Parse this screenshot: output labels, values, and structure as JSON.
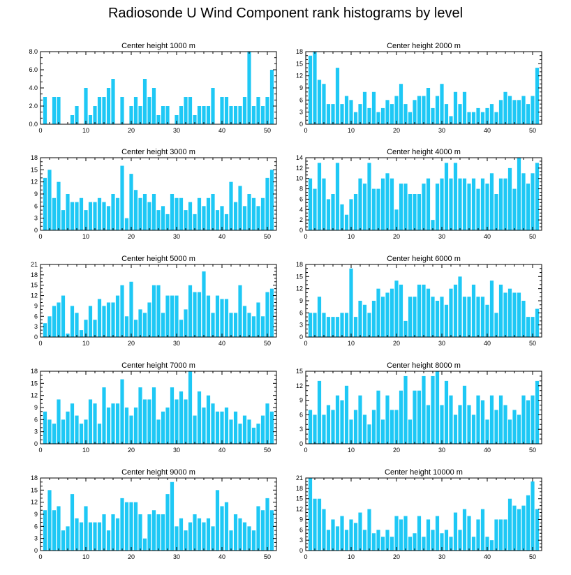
{
  "title": "Radiosonde U Wind Component rank histograms by level",
  "colors": {
    "bar": "#1ec8f5",
    "axis": "#000000"
  },
  "chart_data": [
    {
      "type": "bar",
      "title": "Center height 1000 m",
      "xlim": [
        0,
        52
      ],
      "ylim": [
        0,
        8
      ],
      "xticks": [
        0,
        10,
        20,
        30,
        40,
        50
      ],
      "yticks": [
        0,
        2,
        4,
        6,
        8
      ],
      "ytick_labels": [
        "0.0",
        "2.0",
        "4.0",
        "6.0",
        "8.0"
      ],
      "x": [
        1,
        2,
        3,
        4,
        5,
        6,
        7,
        8,
        9,
        10,
        11,
        12,
        13,
        14,
        15,
        16,
        17,
        18,
        19,
        20,
        21,
        22,
        23,
        24,
        25,
        26,
        27,
        28,
        29,
        30,
        31,
        32,
        33,
        34,
        35,
        36,
        37,
        38,
        39,
        40,
        41,
        42,
        43,
        44,
        45,
        46,
        47,
        48,
        49,
        50,
        51
      ],
      "values": [
        3,
        0,
        3,
        3,
        0,
        0,
        1,
        2,
        0,
        4,
        1,
        2,
        3,
        3,
        4,
        5,
        0,
        3,
        0,
        2,
        3,
        2,
        5,
        3,
        4,
        1,
        2,
        2,
        0,
        1,
        2,
        3,
        3,
        1,
        2,
        2,
        2,
        4,
        0,
        3,
        3,
        2,
        2,
        2,
        3,
        8,
        2,
        3,
        2,
        3,
        6
      ]
    },
    {
      "type": "bar",
      "title": "Center height 2000 m",
      "xlim": [
        0,
        52
      ],
      "ylim": [
        0,
        18
      ],
      "xticks": [
        0,
        10,
        20,
        30,
        40,
        50
      ],
      "yticks": [
        0,
        3,
        6,
        9,
        12,
        15,
        18
      ],
      "ytick_labels": [
        "0",
        "3",
        "6",
        "9",
        "12",
        "15",
        "18"
      ],
      "x": [
        1,
        2,
        3,
        4,
        5,
        6,
        7,
        8,
        9,
        10,
        11,
        12,
        13,
        14,
        15,
        16,
        17,
        18,
        19,
        20,
        21,
        22,
        23,
        24,
        25,
        26,
        27,
        28,
        29,
        30,
        31,
        32,
        33,
        34,
        35,
        36,
        37,
        38,
        39,
        40,
        41,
        42,
        43,
        44,
        45,
        46,
        47,
        48,
        49,
        50,
        51
      ],
      "values": [
        17,
        18,
        11,
        10,
        5,
        5,
        14,
        5,
        7,
        6,
        3,
        5,
        8,
        4,
        8,
        3,
        4,
        6,
        5,
        7,
        10,
        5,
        3,
        6,
        7,
        7,
        9,
        4,
        7,
        10,
        5,
        2,
        8,
        5,
        8,
        3,
        3,
        4,
        3,
        4,
        5,
        3,
        6,
        8,
        7,
        6,
        6,
        7,
        5,
        7,
        14
      ]
    },
    {
      "type": "bar",
      "title": "Center height 3000 m",
      "xlim": [
        0,
        52
      ],
      "ylim": [
        0,
        18
      ],
      "xticks": [
        0,
        10,
        20,
        30,
        40,
        50
      ],
      "yticks": [
        0,
        3,
        6,
        9,
        12,
        15,
        18
      ],
      "ytick_labels": [
        "0",
        "3",
        "6",
        "9",
        "12",
        "15",
        "18"
      ],
      "x": [
        1,
        2,
        3,
        4,
        5,
        6,
        7,
        8,
        9,
        10,
        11,
        12,
        13,
        14,
        15,
        16,
        17,
        18,
        19,
        20,
        21,
        22,
        23,
        24,
        25,
        26,
        27,
        28,
        29,
        30,
        31,
        32,
        33,
        34,
        35,
        36,
        37,
        38,
        39,
        40,
        41,
        42,
        43,
        44,
        45,
        46,
        47,
        48,
        49,
        50,
        51
      ],
      "values": [
        13,
        15,
        8,
        12,
        5,
        9,
        7,
        7,
        8,
        5,
        7,
        7,
        8,
        7,
        6,
        9,
        8,
        16,
        3,
        14,
        10,
        8,
        9,
        7,
        9,
        5,
        6,
        4,
        9,
        8,
        8,
        5,
        7,
        4,
        8,
        6,
        8,
        9,
        5,
        6,
        4,
        12,
        7,
        11,
        6,
        9,
        8,
        6,
        8,
        13,
        15
      ]
    },
    {
      "type": "bar",
      "title": "Center height 4000 m",
      "xlim": [
        0,
        52
      ],
      "ylim": [
        0,
        14
      ],
      "xticks": [
        0,
        10,
        20,
        30,
        40,
        50
      ],
      "yticks": [
        0,
        2,
        4,
        6,
        8,
        10,
        12,
        14
      ],
      "ytick_labels": [
        "0",
        "2",
        "4",
        "6",
        "8",
        "10",
        "12",
        "14"
      ],
      "x": [
        1,
        2,
        3,
        4,
        5,
        6,
        7,
        8,
        9,
        10,
        11,
        12,
        13,
        14,
        15,
        16,
        17,
        18,
        19,
        20,
        21,
        22,
        23,
        24,
        25,
        26,
        27,
        28,
        29,
        30,
        31,
        32,
        33,
        34,
        35,
        36,
        37,
        38,
        39,
        40,
        41,
        42,
        43,
        44,
        45,
        46,
        47,
        48,
        49,
        50,
        51
      ],
      "values": [
        10,
        8,
        13,
        10,
        6,
        7,
        13,
        5,
        3,
        6,
        7,
        10,
        9,
        13,
        8,
        8,
        10,
        11,
        10,
        4,
        9,
        9,
        7,
        7,
        7,
        9,
        10,
        2,
        9,
        10,
        13,
        10,
        13,
        10,
        10,
        9,
        10,
        8,
        10,
        9,
        11,
        7,
        10,
        10,
        12,
        8,
        14,
        11,
        9,
        11,
        13
      ]
    },
    {
      "type": "bar",
      "title": "Center height 5000 m",
      "xlim": [
        0,
        52
      ],
      "ylim": [
        0,
        21
      ],
      "xticks": [
        0,
        10,
        20,
        30,
        40,
        50
      ],
      "yticks": [
        0,
        3,
        6,
        9,
        12,
        15,
        18,
        21
      ],
      "ytick_labels": [
        "0",
        "3",
        "6",
        "9",
        "12",
        "15",
        "18",
        "21"
      ],
      "x": [
        1,
        2,
        3,
        4,
        5,
        6,
        7,
        8,
        9,
        10,
        11,
        12,
        13,
        14,
        15,
        16,
        17,
        18,
        19,
        20,
        21,
        22,
        23,
        24,
        25,
        26,
        27,
        28,
        29,
        30,
        31,
        32,
        33,
        34,
        35,
        36,
        37,
        38,
        39,
        40,
        41,
        42,
        43,
        44,
        45,
        46,
        47,
        48,
        49,
        50,
        51
      ],
      "values": [
        4,
        6,
        9,
        10,
        12,
        1,
        9,
        7,
        2,
        5,
        9,
        5,
        11,
        9,
        10,
        10,
        12,
        15,
        6,
        16,
        5,
        8,
        7,
        10,
        15,
        15,
        7,
        12,
        12,
        12,
        5,
        8,
        15,
        13,
        13,
        19,
        12,
        7,
        12,
        11,
        11,
        7,
        7,
        15,
        9,
        7,
        6,
        10,
        6,
        13,
        14
      ]
    },
    {
      "type": "bar",
      "title": "Center height 6000 m",
      "xlim": [
        0,
        52
      ],
      "ylim": [
        0,
        18
      ],
      "xticks": [
        0,
        10,
        20,
        30,
        40,
        50
      ],
      "yticks": [
        0,
        3,
        6,
        9,
        12,
        15,
        18
      ],
      "ytick_labels": [
        "0",
        "3",
        "6",
        "9",
        "12",
        "15",
        "18"
      ],
      "x": [
        1,
        2,
        3,
        4,
        5,
        6,
        7,
        8,
        9,
        10,
        11,
        12,
        13,
        14,
        15,
        16,
        17,
        18,
        19,
        20,
        21,
        22,
        23,
        24,
        25,
        26,
        27,
        28,
        29,
        30,
        31,
        32,
        33,
        34,
        35,
        36,
        37,
        38,
        39,
        40,
        41,
        42,
        43,
        44,
        45,
        46,
        47,
        48,
        49,
        50,
        51
      ],
      "values": [
        6,
        6,
        10,
        6,
        5,
        5,
        5,
        6,
        6,
        17,
        5,
        9,
        8,
        6,
        9,
        12,
        10,
        11,
        12,
        14,
        13,
        4,
        10,
        10,
        13,
        13,
        12,
        10,
        9,
        10,
        8,
        12,
        13,
        15,
        10,
        10,
        13,
        10,
        10,
        8,
        14,
        6,
        13,
        11,
        12,
        11,
        11,
        9,
        5,
        5,
        7
      ]
    },
    {
      "type": "bar",
      "title": "Center height 7000 m",
      "xlim": [
        0,
        52
      ],
      "ylim": [
        0,
        18
      ],
      "xticks": [
        0,
        10,
        20,
        30,
        40,
        50
      ],
      "yticks": [
        0,
        3,
        6,
        9,
        12,
        15,
        18
      ],
      "ytick_labels": [
        "0",
        "3",
        "6",
        "9",
        "12",
        "15",
        "18"
      ],
      "x": [
        1,
        2,
        3,
        4,
        5,
        6,
        7,
        8,
        9,
        10,
        11,
        12,
        13,
        14,
        15,
        16,
        17,
        18,
        19,
        20,
        21,
        22,
        23,
        24,
        25,
        26,
        27,
        28,
        29,
        30,
        31,
        32,
        33,
        34,
        35,
        36,
        37,
        38,
        39,
        40,
        41,
        42,
        43,
        44,
        45,
        46,
        47,
        48,
        49,
        50,
        51
      ],
      "values": [
        8,
        6,
        5,
        11,
        6,
        8,
        10,
        7,
        5,
        6,
        11,
        10,
        5,
        14,
        9,
        10,
        10,
        16,
        9,
        7,
        9,
        14,
        11,
        11,
        14,
        6,
        8,
        9,
        14,
        11,
        13,
        11,
        18,
        7,
        13,
        9,
        12,
        10,
        8,
        8,
        9,
        6,
        8,
        5,
        7,
        6,
        4,
        5,
        7,
        10,
        8
      ]
    },
    {
      "type": "bar",
      "title": "Center height 8000 m",
      "xlim": [
        0,
        52
      ],
      "ylim": [
        0,
        15
      ],
      "xticks": [
        0,
        10,
        20,
        30,
        40,
        50
      ],
      "yticks": [
        0,
        3,
        6,
        9,
        12,
        15
      ],
      "ytick_labels": [
        "0",
        "3",
        "6",
        "9",
        "12",
        "15"
      ],
      "x": [
        1,
        2,
        3,
        4,
        5,
        6,
        7,
        8,
        9,
        10,
        11,
        12,
        13,
        14,
        15,
        16,
        17,
        18,
        19,
        20,
        21,
        22,
        23,
        24,
        25,
        26,
        27,
        28,
        29,
        30,
        31,
        32,
        33,
        34,
        35,
        36,
        37,
        38,
        39,
        40,
        41,
        42,
        43,
        44,
        45,
        46,
        47,
        48,
        49,
        50,
        51
      ],
      "values": [
        7,
        6,
        13,
        6,
        8,
        7,
        10,
        9,
        12,
        5,
        7,
        10,
        6,
        4,
        7,
        11,
        5,
        10,
        7,
        7,
        11,
        14,
        5,
        11,
        11,
        14,
        8,
        14,
        15,
        8,
        13,
        10,
        6,
        8,
        12,
        8,
        6,
        10,
        9,
        5,
        10,
        7,
        10,
        8,
        5,
        7,
        6,
        10,
        9,
        10,
        13
      ]
    },
    {
      "type": "bar",
      "title": "Center height 9000 m",
      "xlim": [
        0,
        52
      ],
      "ylim": [
        0,
        18
      ],
      "xticks": [
        0,
        10,
        20,
        30,
        40,
        50
      ],
      "yticks": [
        0,
        3,
        6,
        9,
        12,
        15,
        18
      ],
      "ytick_labels": [
        "0",
        "3",
        "6",
        "9",
        "12",
        "15",
        "18"
      ],
      "x": [
        1,
        2,
        3,
        4,
        5,
        6,
        7,
        8,
        9,
        10,
        11,
        12,
        13,
        14,
        15,
        16,
        17,
        18,
        19,
        20,
        21,
        22,
        23,
        24,
        25,
        26,
        27,
        28,
        29,
        30,
        31,
        32,
        33,
        34,
        35,
        36,
        37,
        38,
        39,
        40,
        41,
        42,
        43,
        44,
        45,
        46,
        47,
        48,
        49,
        50,
        51
      ],
      "values": [
        10,
        15,
        10,
        11,
        5,
        6,
        14,
        8,
        7,
        11,
        7,
        7,
        7,
        9,
        5,
        9,
        8,
        13,
        12,
        12,
        12,
        9,
        3,
        9,
        10,
        9,
        9,
        14,
        17,
        6,
        8,
        5,
        7,
        9,
        8,
        7,
        8,
        6,
        15,
        11,
        12,
        5,
        9,
        8,
        7,
        6,
        5,
        11,
        10,
        13,
        10
      ]
    },
    {
      "type": "bar",
      "title": "Center height 10000 m",
      "xlim": [
        0,
        52
      ],
      "ylim": [
        0,
        21
      ],
      "xticks": [
        0,
        10,
        20,
        30,
        40,
        50
      ],
      "yticks": [
        0,
        3,
        6,
        9,
        12,
        15,
        18,
        21
      ],
      "ytick_labels": [
        "0",
        "3",
        "6",
        "9",
        "12",
        "15",
        "18",
        "21"
      ],
      "x": [
        1,
        2,
        3,
        4,
        5,
        6,
        7,
        8,
        9,
        10,
        11,
        12,
        13,
        14,
        15,
        16,
        17,
        18,
        19,
        20,
        21,
        22,
        23,
        24,
        25,
        26,
        27,
        28,
        29,
        30,
        31,
        32,
        33,
        34,
        35,
        36,
        37,
        38,
        39,
        40,
        41,
        42,
        43,
        44,
        45,
        46,
        47,
        48,
        49,
        50,
        51
      ],
      "values": [
        21,
        15,
        15,
        12,
        6,
        9,
        7,
        10,
        6,
        9,
        8,
        11,
        6,
        12,
        5,
        6,
        4,
        6,
        4,
        10,
        9,
        10,
        4,
        5,
        10,
        4,
        9,
        6,
        10,
        5,
        6,
        4,
        11,
        6,
        12,
        10,
        4,
        9,
        12,
        4,
        3,
        9,
        9,
        9,
        15,
        13,
        12,
        13,
        16,
        20,
        12
      ]
    }
  ]
}
